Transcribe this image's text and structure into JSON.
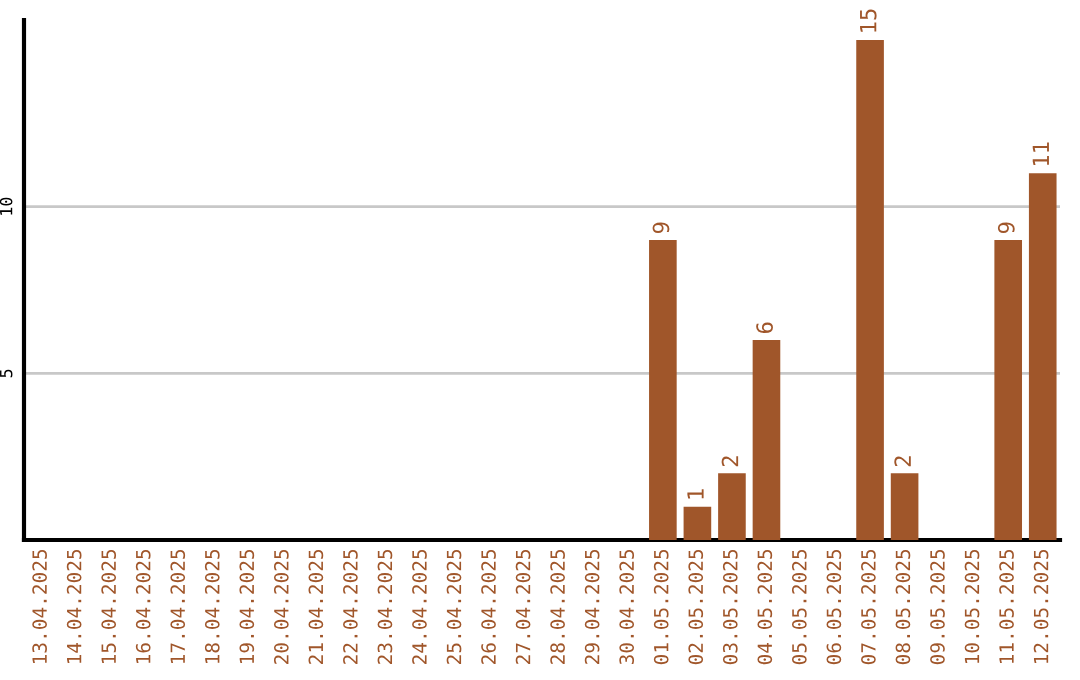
{
  "chart_data": {
    "type": "bar",
    "categories": [
      "13.04.2025",
      "14.04.2025",
      "15.04.2025",
      "16.04.2025",
      "17.04.2025",
      "18.04.2025",
      "19.04.2025",
      "20.04.2025",
      "21.04.2025",
      "22.04.2025",
      "23.04.2025",
      "24.04.2025",
      "25.04.2025",
      "26.04.2025",
      "27.04.2025",
      "28.04.2025",
      "29.04.2025",
      "30.04.2025",
      "01.05.2025",
      "02.05.2025",
      "03.05.2025",
      "04.05.2025",
      "05.05.2025",
      "06.05.2025",
      "07.05.2025",
      "08.05.2025",
      "09.05.2025",
      "10.05.2025",
      "11.05.2025",
      "12.05.2025"
    ],
    "values": [
      0,
      0,
      0,
      0,
      0,
      0,
      0,
      0,
      0,
      0,
      0,
      0,
      0,
      0,
      0,
      0,
      0,
      0,
      9,
      1,
      2,
      6,
      0,
      0,
      15,
      2,
      0,
      0,
      9,
      11
    ],
    "value_labels": [
      null,
      null,
      null,
      null,
      null,
      null,
      null,
      null,
      null,
      null,
      null,
      null,
      null,
      null,
      null,
      null,
      null,
      null,
      "9",
      "1",
      "2",
      "6",
      null,
      null,
      "15",
      "2",
      null,
      null,
      "9",
      "11"
    ],
    "color": "#a0562a",
    "ylim": [
      0,
      15.6
    ],
    "yticks": [
      5,
      10
    ],
    "grid": "y"
  }
}
